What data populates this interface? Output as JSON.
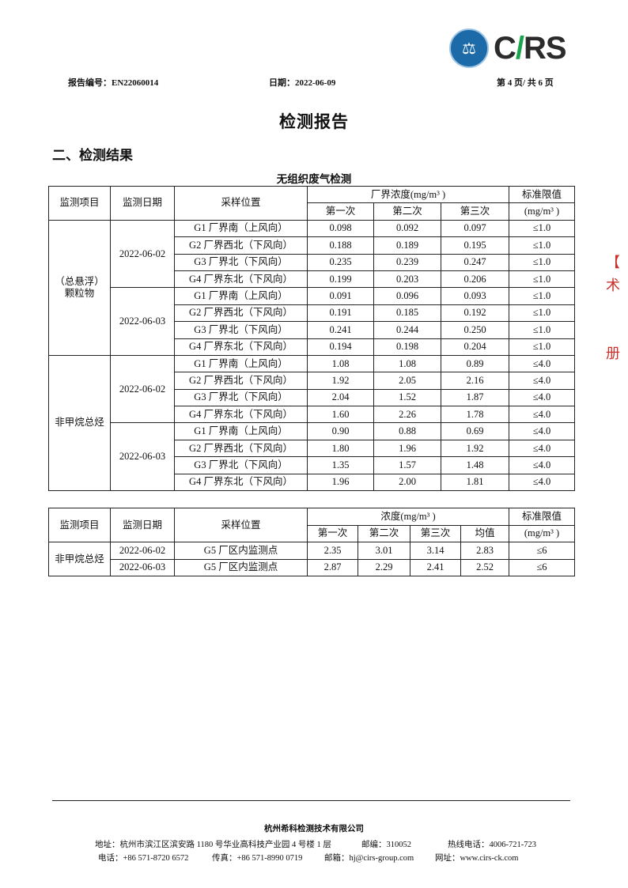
{
  "header": {
    "report_no": "报告编号：EN22060014",
    "date": "日期：2022-06-09",
    "page": "第 4 页/ 共 6 页",
    "logo_text": "CIRS"
  },
  "title": "检测报告",
  "section": "二、检测结果",
  "table1": {
    "caption": "无组织废气检测",
    "headers": {
      "item": "监测项目",
      "date": "监测日期",
      "location": "采样位置",
      "conc": "厂界浓度(mg/m³ )",
      "limit": "标准限值",
      "limit_unit": "(mg/m³ )",
      "runs": [
        "第一次",
        "第二次",
        "第三次"
      ]
    },
    "groups": [
      {
        "item": "（总悬浮）颗粒物",
        "dates": [
          {
            "date": "2022-06-02",
            "rows": [
              {
                "loc": "G1 厂界南（上风向）",
                "v": [
                  "0.098",
                  "0.092",
                  "0.097"
                ],
                "limit": "≤1.0"
              },
              {
                "loc": "G2 厂界西北（下风向）",
                "v": [
                  "0.188",
                  "0.189",
                  "0.195"
                ],
                "limit": "≤1.0"
              },
              {
                "loc": "G3 厂界北（下风向）",
                "v": [
                  "0.235",
                  "0.239",
                  "0.247"
                ],
                "limit": "≤1.0"
              },
              {
                "loc": "G4 厂界东北（下风向）",
                "v": [
                  "0.199",
                  "0.203",
                  "0.206"
                ],
                "limit": "≤1.0"
              }
            ]
          },
          {
            "date": "2022-06-03",
            "rows": [
              {
                "loc": "G1 厂界南（上风向）",
                "v": [
                  "0.091",
                  "0.096",
                  "0.093"
                ],
                "limit": "≤1.0"
              },
              {
                "loc": "G2 厂界西北（下风向）",
                "v": [
                  "0.191",
                  "0.185",
                  "0.192"
                ],
                "limit": "≤1.0"
              },
              {
                "loc": "G3 厂界北（下风向）",
                "v": [
                  "0.241",
                  "0.244",
                  "0.250"
                ],
                "limit": "≤1.0"
              },
              {
                "loc": "G4 厂界东北（下风向）",
                "v": [
                  "0.194",
                  "0.198",
                  "0.204"
                ],
                "limit": "≤1.0"
              }
            ]
          }
        ]
      },
      {
        "item": "非甲烷总烃",
        "dates": [
          {
            "date": "2022-06-02",
            "rows": [
              {
                "loc": "G1 厂界南（上风向）",
                "v": [
                  "1.08",
                  "1.08",
                  "0.89"
                ],
                "limit": "≤4.0"
              },
              {
                "loc": "G2 厂界西北（下风向）",
                "v": [
                  "1.92",
                  "2.05",
                  "2.16"
                ],
                "limit": "≤4.0"
              },
              {
                "loc": "G3 厂界北（下风向）",
                "v": [
                  "2.04",
                  "1.52",
                  "1.87"
                ],
                "limit": "≤4.0"
              },
              {
                "loc": "G4 厂界东北（下风向）",
                "v": [
                  "1.60",
                  "2.26",
                  "1.78"
                ],
                "limit": "≤4.0"
              }
            ]
          },
          {
            "date": "2022-06-03",
            "rows": [
              {
                "loc": "G1 厂界南（上风向）",
                "v": [
                  "0.90",
                  "0.88",
                  "0.69"
                ],
                "limit": "≤4.0"
              },
              {
                "loc": "G2 厂界西北（下风向）",
                "v": [
                  "1.80",
                  "1.96",
                  "1.92"
                ],
                "limit": "≤4.0"
              },
              {
                "loc": "G3 厂界北（下风向）",
                "v": [
                  "1.35",
                  "1.57",
                  "1.48"
                ],
                "limit": "≤4.0"
              },
              {
                "loc": "G4 厂界东北（下风向）",
                "v": [
                  "1.96",
                  "2.00",
                  "1.81"
                ],
                "limit": "≤4.0"
              }
            ]
          }
        ]
      }
    ]
  },
  "table2": {
    "headers": {
      "item": "监测项目",
      "date": "监测日期",
      "location": "采样位置",
      "conc": "浓度(mg/m³ )",
      "limit": "标准限值",
      "limit_unit": "(mg/m³ )",
      "runs": [
        "第一次",
        "第二次",
        "第三次",
        "均值"
      ]
    },
    "item": "非甲烷总烃",
    "rows": [
      {
        "date": "2022-06-02",
        "loc": "G5 厂区内监测点",
        "v": [
          "2.35",
          "3.01",
          "3.14",
          "2.83"
        ],
        "limit": "≤6"
      },
      {
        "date": "2022-06-03",
        "loc": "G5 厂区内监测点",
        "v": [
          "2.87",
          "2.29",
          "2.41",
          "2.52"
        ],
        "limit": "≤6"
      }
    ]
  },
  "footer": {
    "company": "杭州希科检测技术有限公司",
    "address": "地址：杭州市滨江区滨安路 1180 号华业高科技产业园 4 号楼 1 层",
    "postcode": "邮编：310052",
    "hotline": "热线电话：4006-721-723",
    "phone": "电话：+86 571-8720 6572",
    "fax": "传真：+86 571-8990 0719",
    "email": "邮箱：hj@cirs-group.com",
    "website": "网址：www.cirs-ck.com"
  }
}
